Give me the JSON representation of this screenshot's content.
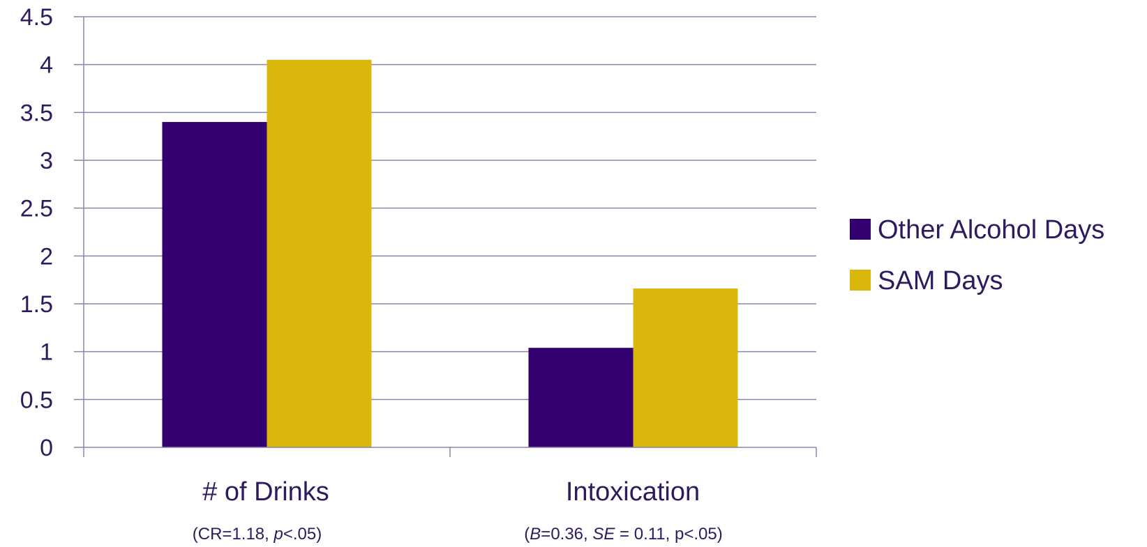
{
  "chart_data": {
    "type": "bar",
    "categories": [
      "# of Drinks",
      "Intoxication"
    ],
    "category_notes": [
      [
        {
          "t": "(CR=1.18, ",
          "i": false
        },
        {
          "t": "p",
          "i": true
        },
        {
          "t": "<.05)",
          "i": false
        }
      ],
      [
        {
          "t": "(",
          "i": false
        },
        {
          "t": "B",
          "i": true
        },
        {
          "t": "=0.36, ",
          "i": false
        },
        {
          "t": "SE",
          "i": true
        },
        {
          "t": " = 0.11, p<.05)",
          "i": false
        }
      ]
    ],
    "series": [
      {
        "name": "Other Alcohol Days",
        "values": [
          3.4,
          1.04
        ],
        "color": "#33006f"
      },
      {
        "name": "SAM Days",
        "values": [
          4.05,
          1.66
        ],
        "color": "#dab80b"
      }
    ],
    "ylim": [
      0,
      4.5
    ],
    "yticks": [
      "0",
      "0.5",
      "1",
      "1.5",
      "2",
      "2.5",
      "3",
      "3.5",
      "4",
      "4.5"
    ],
    "grid": true,
    "legend_position": "right"
  }
}
